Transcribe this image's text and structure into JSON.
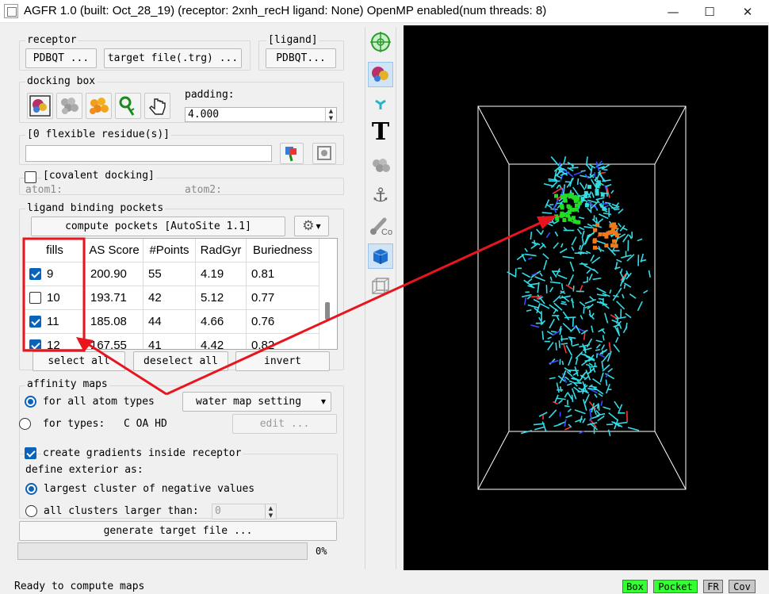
{
  "window": {
    "title": "AGFR 1.0 (built: Oct_28_19) (receptor: 2xnh_recH ligand: None) OpenMP enabled(num threads: 8)",
    "minimize_glyph": "—",
    "maximize_glyph": "☐",
    "close_glyph": "✕"
  },
  "receptor": {
    "title": "receptor",
    "pdbqt_button": "PDBQT ...",
    "target_file_button": "target file(.trg) ..."
  },
  "ligand": {
    "title": "[ligand]",
    "pdbqt_button": "PDBQT..."
  },
  "docking_box": {
    "title": "docking box",
    "padding_label": "padding:",
    "padding_value": "4.000",
    "icons": [
      "receptor-box-icon",
      "atoms-box-icon",
      "fill-box-icon",
      "residue-box-icon",
      "manual-box-icon"
    ]
  },
  "flexible": {
    "title": "[0 flexible residue(s)]",
    "value": ""
  },
  "covalent": {
    "title": "[covalent docking]",
    "checked": false,
    "atom1_label": "atom1:",
    "atom2_label": "atom2:"
  },
  "pockets": {
    "title": "ligand binding pockets",
    "compute_button": "compute pockets [AutoSite 1.1]",
    "columns": [
      "fills",
      "AS Score",
      "#Points",
      "RadGyr",
      "Buriedness"
    ],
    "rows": [
      {
        "fill": "9",
        "checked": true,
        "score": "200.90",
        "points": "55",
        "radgyr": "4.19",
        "buried": "0.81"
      },
      {
        "fill": "10",
        "checked": false,
        "score": "193.71",
        "points": "42",
        "radgyr": "5.12",
        "buried": "0.77"
      },
      {
        "fill": "11",
        "checked": true,
        "score": "185.08",
        "points": "44",
        "radgyr": "4.66",
        "buried": "0.76"
      },
      {
        "fill": "12",
        "checked": true,
        "score": "167.55",
        "points": "41",
        "radgyr": "4.42",
        "buried": "0.82"
      }
    ],
    "select_all": "select all",
    "deselect_all": "deselect all",
    "invert": "invert"
  },
  "affinity": {
    "title": "affinity maps",
    "all_types_label": "for all atom types",
    "water_dropdown": "water map setting",
    "for_types_label": "for types:",
    "types_value": "C OA HD",
    "edit_button": "edit ...",
    "gradients_label": "create gradients inside receptor",
    "gradients_checked": true,
    "exterior_label": "define exterior as:",
    "largest_label": "largest cluster of negative values",
    "all_clusters_label": "all clusters larger than:",
    "clusters_value": "0"
  },
  "generate_button": "generate target file ...",
  "progress": {
    "percent_text": "0%",
    "value": 0
  },
  "status": {
    "message": "Ready to compute maps",
    "indicators": [
      {
        "label": "Box",
        "color": "#33ff33"
      },
      {
        "label": "Pocket",
        "color": "#33ff33"
      },
      {
        "label": "FR",
        "color": "#c8c8c8"
      },
      {
        "label": "Cov",
        "color": "#c8c8c8"
      }
    ]
  },
  "toolbar_icons": [
    "center-target-icon",
    "receptor-surface-icon",
    "ligand-icon",
    "text-label-icon",
    "atoms-cluster-icon",
    "anchor-icon",
    "covalent-bond-icon",
    "solid-box-icon",
    "wireframe-box-icon"
  ],
  "colors": {
    "accent": "#0a62b9",
    "annotation": "#e8141e",
    "pocket_green": "#22dd22",
    "pocket_orange": "#f07a1a",
    "pocket_cyan": "#33dddd",
    "molecule": "#33dde8"
  }
}
